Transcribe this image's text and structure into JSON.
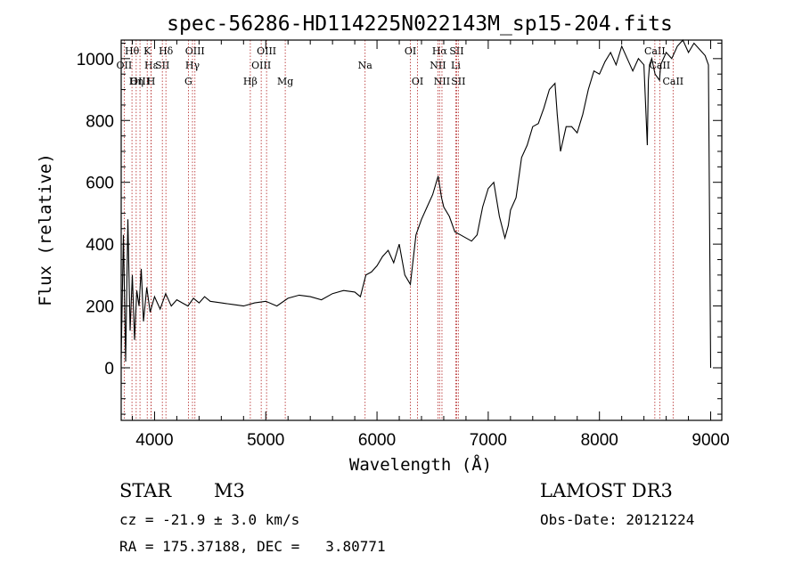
{
  "chart_data": {
    "type": "line",
    "title": "spec-56286-HD114225N022143M_sp15-204.fits",
    "xlabel": "Wavelength (Å)",
    "ylabel": "Flux (relative)",
    "xlim": [
      3700,
      9100
    ],
    "ylim": [
      -170,
      1060
    ],
    "x_ticks": [
      4000,
      5000,
      6000,
      7000,
      8000,
      9000
    ],
    "y_ticks": [
      0,
      200,
      400,
      600,
      800,
      1000
    ],
    "series": [
      {
        "name": "flux",
        "x": [
          3700,
          3720,
          3740,
          3760,
          3780,
          3800,
          3820,
          3840,
          3860,
          3880,
          3900,
          3930,
          3960,
          4000,
          4050,
          4100,
          4150,
          4200,
          4250,
          4300,
          4350,
          4400,
          4450,
          4500,
          4600,
          4700,
          4800,
          4900,
          5000,
          5100,
          5200,
          5300,
          5400,
          5500,
          5600,
          5700,
          5800,
          5850,
          5900,
          5950,
          6000,
          6050,
          6100,
          6150,
          6200,
          6250,
          6300,
          6350,
          6400,
          6450,
          6500,
          6550,
          6580,
          6600,
          6650,
          6700,
          6750,
          6800,
          6850,
          6900,
          6950,
          7000,
          7050,
          7100,
          7150,
          7180,
          7200,
          7250,
          7300,
          7350,
          7400,
          7450,
          7500,
          7550,
          7600,
          7620,
          7650,
          7700,
          7750,
          7800,
          7850,
          7900,
          7950,
          8000,
          8050,
          8100,
          8150,
          8200,
          8250,
          8300,
          8350,
          8400,
          8430,
          8440,
          8450,
          8470,
          8500,
          8540,
          8550,
          8600,
          8650,
          8700,
          8750,
          8800,
          8850,
          8900,
          8950,
          8980,
          9000
        ],
        "y": [
          30,
          430,
          20,
          480,
          120,
          300,
          90,
          250,
          200,
          320,
          150,
          260,
          180,
          230,
          190,
          240,
          200,
          220,
          210,
          200,
          225,
          210,
          230,
          215,
          210,
          205,
          200,
          210,
          215,
          200,
          225,
          235,
          230,
          220,
          240,
          250,
          245,
          230,
          300,
          310,
          330,
          360,
          380,
          340,
          400,
          300,
          270,
          430,
          480,
          520,
          560,
          620,
          550,
          520,
          490,
          440,
          430,
          420,
          410,
          430,
          520,
          580,
          600,
          490,
          420,
          460,
          510,
          550,
          680,
          720,
          780,
          790,
          840,
          900,
          920,
          820,
          700,
          780,
          780,
          760,
          820,
          900,
          960,
          950,
          990,
          1020,
          980,
          1040,
          1000,
          960,
          1000,
          980,
          720,
          930,
          980,
          1000,
          950,
          930,
          980,
          1020,
          1000,
          1040,
          1060,
          1020,
          1050,
          1030,
          1010,
          980,
          0
        ]
      }
    ],
    "spectral_lines": [
      {
        "label": "Hθ",
        "x": 3797,
        "row": 1
      },
      {
        "label": "OII",
        "x": 3727,
        "row": 2
      },
      {
        "label": "OIII",
        "x": 3869,
        "row": 3
      },
      {
        "label": "K",
        "x": 3934,
        "row": 1
      },
      {
        "label": "Hε",
        "x": 3970,
        "row": 2
      },
      {
        "label": "Hη",
        "x": 3835,
        "row": 3
      },
      {
        "label": "SII",
        "x": 4070,
        "row": 2
      },
      {
        "label": "H",
        "x": 3969,
        "row": 3
      },
      {
        "label": "Hδ",
        "x": 4102,
        "row": 1
      },
      {
        "label": "OIII",
        "x": 4363,
        "row": 1
      },
      {
        "label": "Hγ",
        "x": 4341,
        "row": 2
      },
      {
        "label": "G",
        "x": 4304,
        "row": 3
      },
      {
        "label": "Hβ",
        "x": 4861,
        "row": 3
      },
      {
        "label": "OIII",
        "x": 5007,
        "row": 1
      },
      {
        "label": "OIII",
        "x": 4959,
        "row": 2
      },
      {
        "label": "Mg",
        "x": 5175,
        "row": 3
      },
      {
        "label": "Na",
        "x": 5893,
        "row": 2
      },
      {
        "label": "OI",
        "x": 6300,
        "row": 1
      },
      {
        "label": "OI",
        "x": 6364,
        "row": 3
      },
      {
        "label": "Hα",
        "x": 6563,
        "row": 1
      },
      {
        "label": "SII",
        "x": 6716,
        "row": 1
      },
      {
        "label": "NII",
        "x": 6548,
        "row": 2
      },
      {
        "label": "Li",
        "x": 6708,
        "row": 2
      },
      {
        "label": "NII",
        "x": 6584,
        "row": 3
      },
      {
        "label": "SII",
        "x": 6731,
        "row": 3
      },
      {
        "label": "CaII",
        "x": 8498,
        "row": 1
      },
      {
        "label": "CaII",
        "x": 8542,
        "row": 2
      },
      {
        "label": "CaII",
        "x": 8662,
        "row": 3
      }
    ]
  },
  "info": {
    "object_class": "STAR",
    "subclass": "M3",
    "survey": "LAMOST DR3",
    "cz": "cz = -21.9 ± 3.0 km/s",
    "obs_date": "Obs-Date: 20121224",
    "coords": "RA = 175.37188, DEC =   3.80771"
  },
  "colors": {
    "line_marker": "#b22222",
    "spectrum": "#000000"
  }
}
